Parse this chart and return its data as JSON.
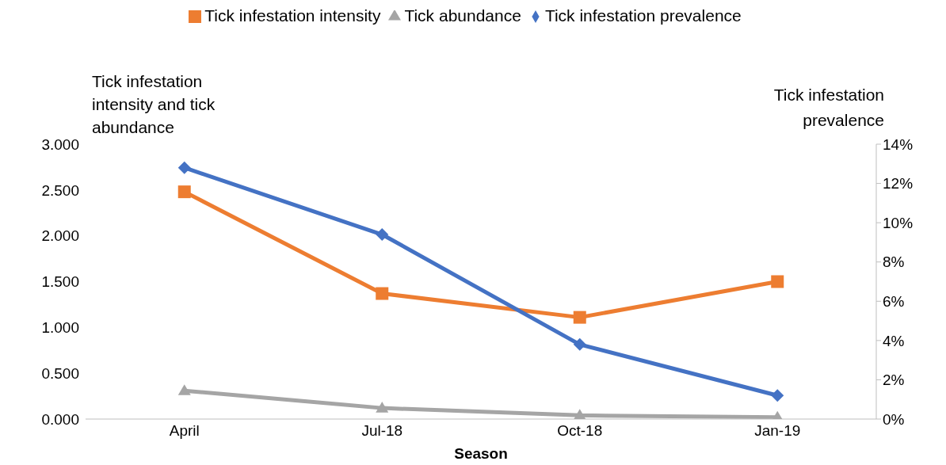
{
  "chart_data": {
    "type": "line",
    "xlabel": "Season",
    "ylabel": "Tick infestation intensity and tick abundance",
    "y2label": "Tick infestation prevalence",
    "categories": [
      "April",
      "Jul-18",
      "Oct-18",
      "Jan-19"
    ],
    "series": [
      {
        "name": "Tick infestation intensity",
        "color": "#ed7d31",
        "marker": "square",
        "values": [
          2.48,
          1.37,
          1.11,
          1.5
        ]
      },
      {
        "name": "Tick abundance",
        "color": "#a5a5a5",
        "marker": "triangle",
        "values": [
          0.31,
          0.12,
          0.04,
          0.02
        ]
      },
      {
        "name": "Tick infestation prevalence",
        "color": "#4472c4",
        "marker": "diamond",
        "axis": "y2",
        "values": [
          12.8,
          9.4,
          3.8,
          1.2
        ]
      }
    ],
    "ylim": [
      0,
      3
    ],
    "yticks": [
      {
        "value": 0,
        "label": "0.000"
      },
      {
        "value": 0.5,
        "label": "0.500"
      },
      {
        "value": 1,
        "label": "1.000"
      },
      {
        "value": 1.5,
        "label": "1.500"
      },
      {
        "value": 2,
        "label": "2.000"
      },
      {
        "value": 2.5,
        "label": "2.500"
      },
      {
        "value": 3,
        "label": "3.000"
      }
    ],
    "y2lim": [
      0,
      14
    ],
    "y2ticks": [
      {
        "value": 0,
        "label": "0%"
      },
      {
        "value": 2,
        "label": "2%"
      },
      {
        "value": 4,
        "label": "4%"
      },
      {
        "value": 6,
        "label": "6%"
      },
      {
        "value": 8,
        "label": "8%"
      },
      {
        "value": 10,
        "label": "10%"
      },
      {
        "value": 12,
        "label": "12%"
      },
      {
        "value": 14,
        "label": "14%"
      }
    ],
    "grid": false,
    "legend": "top",
    "line_style": "solid"
  }
}
